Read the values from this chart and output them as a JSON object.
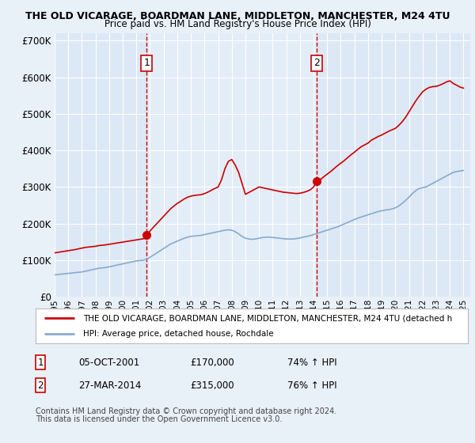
{
  "title": "THE OLD VICARAGE, BOARDMAN LANE, MIDDLETON, MANCHESTER, M24 4TU",
  "subtitle": "Price paid vs. HM Land Registry's House Price Index (HPI)",
  "legend_line1": "THE OLD VICARAGE, BOARDMAN LANE, MIDDLETON, MANCHESTER, M24 4TU (detached h",
  "legend_line2": "HPI: Average price, detached house, Rochdale",
  "sale1_date": "05-OCT-2001",
  "sale1_price": "£170,000",
  "sale1_hpi": "74% ↑ HPI",
  "sale2_date": "27-MAR-2014",
  "sale2_price": "£315,000",
  "sale2_hpi": "76% ↑ HPI",
  "footnote1": "Contains HM Land Registry data © Crown copyright and database right 2024.",
  "footnote2": "This data is licensed under the Open Government Licence v3.0.",
  "bg_color": "#e8f0f8",
  "plot_bg_color": "#dce8f5",
  "highlight_color": "#e8f2fc",
  "red_line_color": "#cc0000",
  "blue_line_color": "#88aacc",
  "vline_color": "#cc0000",
  "grid_color": "#ffffff",
  "ylim": [
    0,
    720000
  ],
  "yticks": [
    0,
    100000,
    200000,
    300000,
    400000,
    500000,
    600000,
    700000
  ],
  "sale1_x": 2001.75,
  "sale1_y": 170000,
  "sale2_x": 2014.25,
  "sale2_y": 315000,
  "xmin": 1995.0,
  "xmax": 2025.5,
  "hpi_years": [
    1995.0,
    1995.25,
    1995.5,
    1995.75,
    1996.0,
    1996.25,
    1996.5,
    1996.75,
    1997.0,
    1997.25,
    1997.5,
    1997.75,
    1998.0,
    1998.25,
    1998.5,
    1998.75,
    1999.0,
    1999.25,
    1999.5,
    1999.75,
    2000.0,
    2000.25,
    2000.5,
    2000.75,
    2001.0,
    2001.25,
    2001.5,
    2001.75,
    2002.0,
    2002.25,
    2002.5,
    2002.75,
    2003.0,
    2003.25,
    2003.5,
    2003.75,
    2004.0,
    2004.25,
    2004.5,
    2004.75,
    2005.0,
    2005.25,
    2005.5,
    2005.75,
    2006.0,
    2006.25,
    2006.5,
    2006.75,
    2007.0,
    2007.25,
    2007.5,
    2007.75,
    2008.0,
    2008.25,
    2008.5,
    2008.75,
    2009.0,
    2009.25,
    2009.5,
    2009.75,
    2010.0,
    2010.25,
    2010.5,
    2010.75,
    2011.0,
    2011.25,
    2011.5,
    2011.75,
    2012.0,
    2012.25,
    2012.5,
    2012.75,
    2013.0,
    2013.25,
    2013.5,
    2013.75,
    2014.0,
    2014.25,
    2014.5,
    2014.75,
    2015.0,
    2015.25,
    2015.5,
    2015.75,
    2016.0,
    2016.25,
    2016.5,
    2016.75,
    2017.0,
    2017.25,
    2017.5,
    2017.75,
    2018.0,
    2018.25,
    2018.5,
    2018.75,
    2019.0,
    2019.25,
    2019.5,
    2019.75,
    2020.0,
    2020.25,
    2020.5,
    2020.75,
    2021.0,
    2021.25,
    2021.5,
    2021.75,
    2022.0,
    2022.25,
    2022.5,
    2022.75,
    2023.0,
    2023.25,
    2023.5,
    2023.75,
    2024.0,
    2024.25,
    2024.5,
    2024.75,
    2025.0
  ],
  "hpi_values": [
    60000,
    61000,
    62000,
    63000,
    64000,
    65000,
    66000,
    67000,
    68000,
    70000,
    72000,
    74000,
    76000,
    78000,
    79000,
    80000,
    82000,
    84000,
    86000,
    88000,
    90000,
    92000,
    94000,
    96000,
    98000,
    99000,
    100000,
    102000,
    108000,
    114000,
    120000,
    126000,
    132000,
    138000,
    144000,
    148000,
    152000,
    156000,
    160000,
    163000,
    165000,
    166000,
    167000,
    168000,
    170000,
    172000,
    174000,
    176000,
    178000,
    180000,
    182000,
    183000,
    182000,
    178000,
    172000,
    165000,
    160000,
    158000,
    157000,
    158000,
    160000,
    162000,
    163000,
    163000,
    162000,
    161000,
    160000,
    159000,
    158000,
    158000,
    158000,
    159000,
    161000,
    163000,
    165000,
    167000,
    170000,
    173000,
    176000,
    179000,
    182000,
    185000,
    188000,
    191000,
    195000,
    199000,
    203000,
    207000,
    211000,
    215000,
    218000,
    221000,
    224000,
    227000,
    230000,
    233000,
    235000,
    237000,
    238000,
    240000,
    243000,
    248000,
    255000,
    263000,
    272000,
    282000,
    290000,
    296000,
    298000,
    300000,
    305000,
    310000,
    315000,
    320000,
    325000,
    330000,
    335000,
    340000,
    342000,
    344000,
    345000
  ],
  "red_years_seg1": [
    1995.0,
    1995.25,
    1995.5,
    1995.75,
    1996.0,
    1996.25,
    1996.5,
    1996.75,
    1997.0,
    1997.25,
    1997.5,
    1997.75,
    1998.0,
    1998.25,
    1998.5,
    1998.75,
    1999.0,
    1999.25,
    1999.5,
    1999.75,
    2000.0,
    2000.25,
    2000.5,
    2000.75,
    2001.0,
    2001.25,
    2001.5,
    2001.75
  ],
  "red_values_seg1": [
    120000,
    121500,
    123000,
    124500,
    126000,
    127500,
    129000,
    131000,
    133000,
    135000,
    136000,
    137000,
    138000,
    140000,
    141000,
    142000,
    143500,
    145000,
    146500,
    148000,
    149500,
    151000,
    152500,
    154000,
    155500,
    157000,
    158500,
    160000
  ],
  "red_years_seg2": [
    2001.75,
    2002.0,
    2002.25,
    2002.5,
    2002.75,
    2003.0,
    2003.25,
    2003.5,
    2003.75,
    2004.0,
    2004.25,
    2004.5,
    2004.75,
    2005.0,
    2005.25,
    2005.5,
    2005.75,
    2006.0,
    2006.25,
    2006.5,
    2006.75,
    2007.0,
    2007.25,
    2007.5,
    2007.75,
    2008.0,
    2008.25,
    2008.5,
    2008.75,
    2009.0,
    2009.25,
    2009.5,
    2009.75,
    2010.0,
    2010.25,
    2010.5,
    2010.75,
    2011.0,
    2011.25,
    2011.5,
    2011.75,
    2012.0,
    2012.25,
    2012.5,
    2012.75,
    2013.0,
    2013.25,
    2013.5,
    2013.75,
    2014.0,
    2014.25
  ],
  "red_values_seg2": [
    170000,
    180000,
    190000,
    200000,
    210000,
    220000,
    230000,
    240000,
    248000,
    255000,
    261000,
    267000,
    272000,
    275000,
    277000,
    278000,
    279000,
    282000,
    286000,
    291000,
    296000,
    300000,
    320000,
    350000,
    370000,
    375000,
    360000,
    340000,
    310000,
    280000,
    285000,
    290000,
    295000,
    300000,
    298000,
    296000,
    294000,
    292000,
    290000,
    288000,
    286000,
    285000,
    284000,
    283000,
    282000,
    283000,
    285000,
    288000,
    292000,
    300000,
    315000
  ],
  "red_years_seg3": [
    2014.25,
    2014.5,
    2014.75,
    2015.0,
    2015.25,
    2015.5,
    2015.75,
    2016.0,
    2016.25,
    2016.5,
    2016.75,
    2017.0,
    2017.25,
    2017.5,
    2017.75,
    2018.0,
    2018.25,
    2018.5,
    2018.75,
    2019.0,
    2019.25,
    2019.5,
    2019.75,
    2020.0,
    2020.25,
    2020.5,
    2020.75,
    2021.0,
    2021.25,
    2021.5,
    2021.75,
    2022.0,
    2022.25,
    2022.5,
    2022.75,
    2023.0,
    2023.25,
    2023.5,
    2023.75,
    2024.0,
    2024.25,
    2024.5,
    2024.75,
    2025.0
  ],
  "red_values_seg3": [
    315000,
    320000,
    328000,
    335000,
    342000,
    350000,
    358000,
    365000,
    372000,
    380000,
    388000,
    395000,
    403000,
    410000,
    415000,
    420000,
    428000,
    433000,
    438000,
    442000,
    447000,
    452000,
    456000,
    460000,
    468000,
    478000,
    490000,
    505000,
    520000,
    535000,
    548000,
    560000,
    567000,
    572000,
    574000,
    575000,
    578000,
    582000,
    587000,
    590000,
    583000,
    578000,
    573000,
    570000
  ]
}
